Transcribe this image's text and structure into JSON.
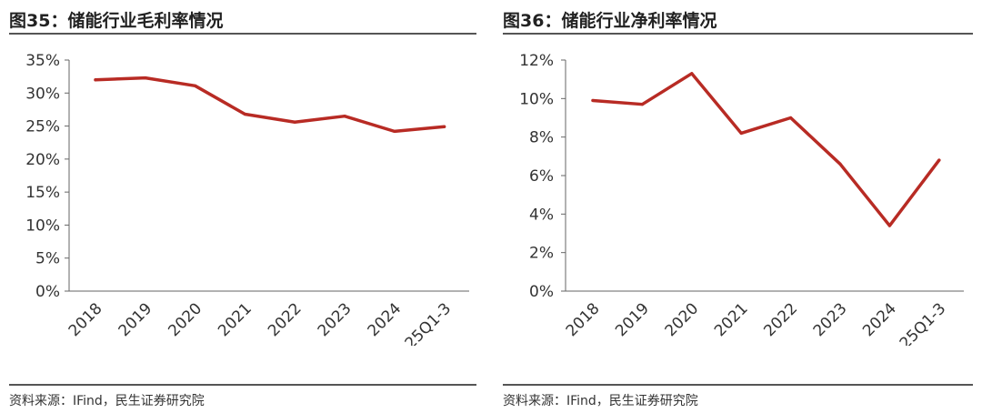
{
  "colors": {
    "line": "#b82b24",
    "axis": "#666666",
    "rule": "#555555"
  },
  "charts": [
    {
      "title": "图35：储能行业毛利率情况",
      "source": "资料来源：IFind，民生证券研究院",
      "chart_data": {
        "type": "line",
        "categories": [
          "2018",
          "2019",
          "2020",
          "2021",
          "2022",
          "2023",
          "2024",
          "25Q1-3"
        ],
        "series": [
          {
            "values": [
              32.0,
              32.3,
              31.1,
              26.8,
              25.6,
              26.5,
              24.2,
              24.9
            ]
          }
        ],
        "yticks": [
          "0%",
          "5%",
          "10%",
          "15%",
          "20%",
          "25%",
          "30%",
          "35%"
        ],
        "ylim": [
          0,
          35
        ],
        "xlabel": "",
        "ylabel": "",
        "grid": false,
        "legend": "none"
      }
    },
    {
      "title": "图36：储能行业净利率情况",
      "source": "资料来源：IFind，民生证券研究院",
      "chart_data": {
        "type": "line",
        "categories": [
          "2018",
          "2019",
          "2020",
          "2021",
          "2022",
          "2023",
          "2024",
          "25Q1-3"
        ],
        "series": [
          {
            "values": [
              9.9,
              9.7,
              11.3,
              8.2,
              9.0,
              6.6,
              3.4,
              6.8
            ]
          }
        ],
        "yticks": [
          "0%",
          "2%",
          "4%",
          "6%",
          "8%",
          "10%",
          "12%"
        ],
        "ylim": [
          0,
          12
        ],
        "xlabel": "",
        "ylabel": "",
        "grid": false,
        "legend": "none"
      }
    }
  ]
}
